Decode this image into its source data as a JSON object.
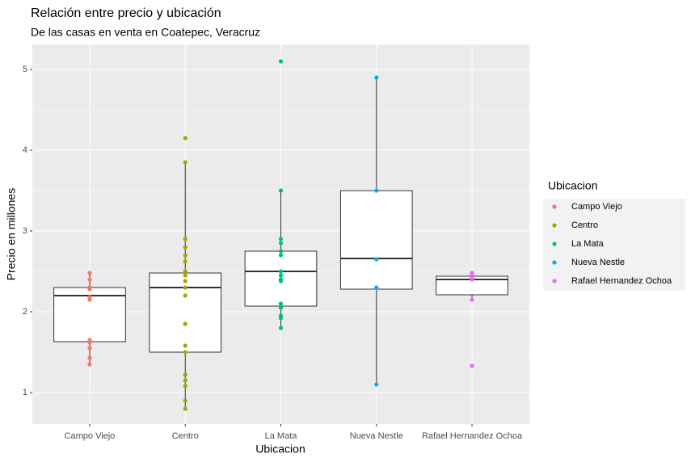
{
  "chart_data": {
    "type": "boxplot",
    "title": "Relación entre precio y ubicación",
    "subtitle": "De las casas en venta en Coatepec, Veracruz",
    "x_label": "Ubicacion",
    "y_label": "Precio en millones",
    "legend_title": "Ubicacion",
    "categories": [
      "Campo Viejo",
      "Centro",
      "La Mata",
      "Nueva Nestle",
      "Rafael Hernandez Ochoa"
    ],
    "ylim": [
      0.61,
      5.31
    ],
    "yticks": [
      1,
      2,
      3,
      4,
      5
    ],
    "minor_yticks": [
      1.5,
      2.5,
      3.5,
      4.5
    ],
    "grid": true,
    "legend": "right",
    "boxes": [
      {
        "whisker_low": 1.35,
        "q1": 1.63,
        "median": 2.2,
        "q3": 2.3,
        "whisker_high": 2.48
      },
      {
        "whisker_low": 0.8,
        "q1": 1.5,
        "median": 2.3,
        "q3": 2.48,
        "whisker_high": 3.85
      },
      {
        "whisker_low": 1.8,
        "q1": 2.07,
        "median": 2.5,
        "q3": 2.75,
        "whisker_high": 3.5
      },
      {
        "whisker_low": 1.1,
        "q1": 2.28,
        "median": 2.66,
        "q3": 3.5,
        "whisker_high": 4.9
      },
      {
        "whisker_low": 2.15,
        "q1": 2.21,
        "median": 2.4,
        "q3": 2.44,
        "whisker_high": 2.48
      }
    ],
    "series": [
      {
        "name": "Campo Viejo",
        "color": "#F8766D",
        "values": [
          2.48,
          2.4,
          2.3,
          2.28,
          2.18,
          2.15,
          1.65,
          1.62,
          1.55,
          1.43,
          1.35
        ]
      },
      {
        "name": "Centro",
        "color": "#A3A500",
        "values": [
          4.15,
          3.85,
          2.9,
          2.8,
          2.7,
          2.62,
          2.5,
          2.45,
          2.38,
          2.3,
          2.2,
          1.85,
          1.58,
          1.5,
          1.22,
          1.15,
          1.08,
          0.9,
          0.8
        ]
      },
      {
        "name": "La Mata",
        "color": "#00BF7D",
        "values": [
          5.1,
          3.5,
          2.9,
          2.85,
          2.75,
          2.7,
          2.5,
          2.45,
          2.4,
          2.38,
          2.1,
          2.05,
          1.95,
          1.92,
          1.8
        ]
      },
      {
        "name": "Nueva Nestle",
        "color": "#00B0F6",
        "values": [
          4.9,
          3.5,
          2.65,
          2.3,
          1.1
        ]
      },
      {
        "name": "Rafael Hernandez Ochoa",
        "color": "#E76BF3",
        "values": [
          2.48,
          2.45,
          2.42,
          2.4,
          2.15,
          1.33
        ]
      }
    ]
  }
}
